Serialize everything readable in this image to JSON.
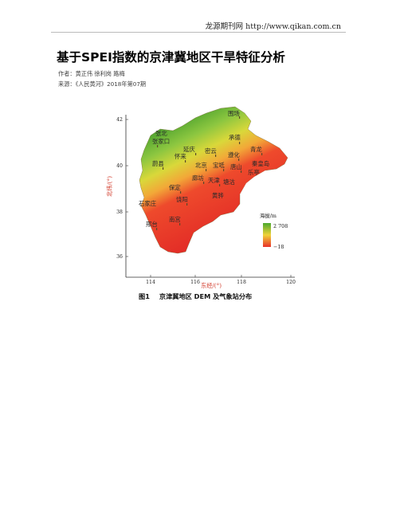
{
  "header": {
    "site": "龙源期刊网 http://www.qikan.com.cn"
  },
  "article": {
    "title": "基于SPEI指数的京津冀地区干旱特征分析",
    "authors": "作者：黄正伟 徐利岗 路梅",
    "source": "来源：《人民黄河》2018年第07期"
  },
  "figure": {
    "number": "图1",
    "caption": "京津冀地区 DEM 及气象站分布",
    "x_axis_label": "东经/(°)",
    "y_axis_label": "北纬/(°)",
    "x_ticks": [
      "114",
      "116",
      "118",
      "120"
    ],
    "y_ticks": [
      "42",
      "40",
      "38",
      "36"
    ],
    "legend": {
      "title": "海拔/m",
      "max_label": "2 708",
      "min_label": "−18",
      "colors": {
        "high": "#4caa2e",
        "mid": "#f0d23a",
        "low": "#e8302a"
      }
    },
    "stations": [
      {
        "id": "weichang",
        "label": "围场"
      },
      {
        "id": "zhangbei",
        "label": "张北"
      },
      {
        "id": "zhangjiakou",
        "label": "张家口"
      },
      {
        "id": "chengde",
        "label": "承德"
      },
      {
        "id": "yanqing",
        "label": "延庆"
      },
      {
        "id": "miyun",
        "label": "密云"
      },
      {
        "id": "qinglong",
        "label": "青龙"
      },
      {
        "id": "huailai",
        "label": "怀来"
      },
      {
        "id": "zunhua",
        "label": "遵化"
      },
      {
        "id": "qinhuangdao",
        "label": "秦皇岛"
      },
      {
        "id": "yuxian",
        "label": "蔚县"
      },
      {
        "id": "beijing",
        "label": "北京"
      },
      {
        "id": "baodi",
        "label": "宝坻"
      },
      {
        "id": "tangshan",
        "label": "唐山"
      },
      {
        "id": "leting",
        "label": "乐亭"
      },
      {
        "id": "langfang",
        "label": "廊坊"
      },
      {
        "id": "tianjin",
        "label": "天津"
      },
      {
        "id": "tanggu",
        "label": "塘沽"
      },
      {
        "id": "baoding",
        "label": "保定"
      },
      {
        "id": "huanghua",
        "label": "黄骅"
      },
      {
        "id": "raoyang",
        "label": "饶阳"
      },
      {
        "id": "shijiazhuang",
        "label": "石家庄"
      },
      {
        "id": "nangong",
        "label": "南宫"
      },
      {
        "id": "xingtai",
        "label": "邢台"
      }
    ]
  }
}
